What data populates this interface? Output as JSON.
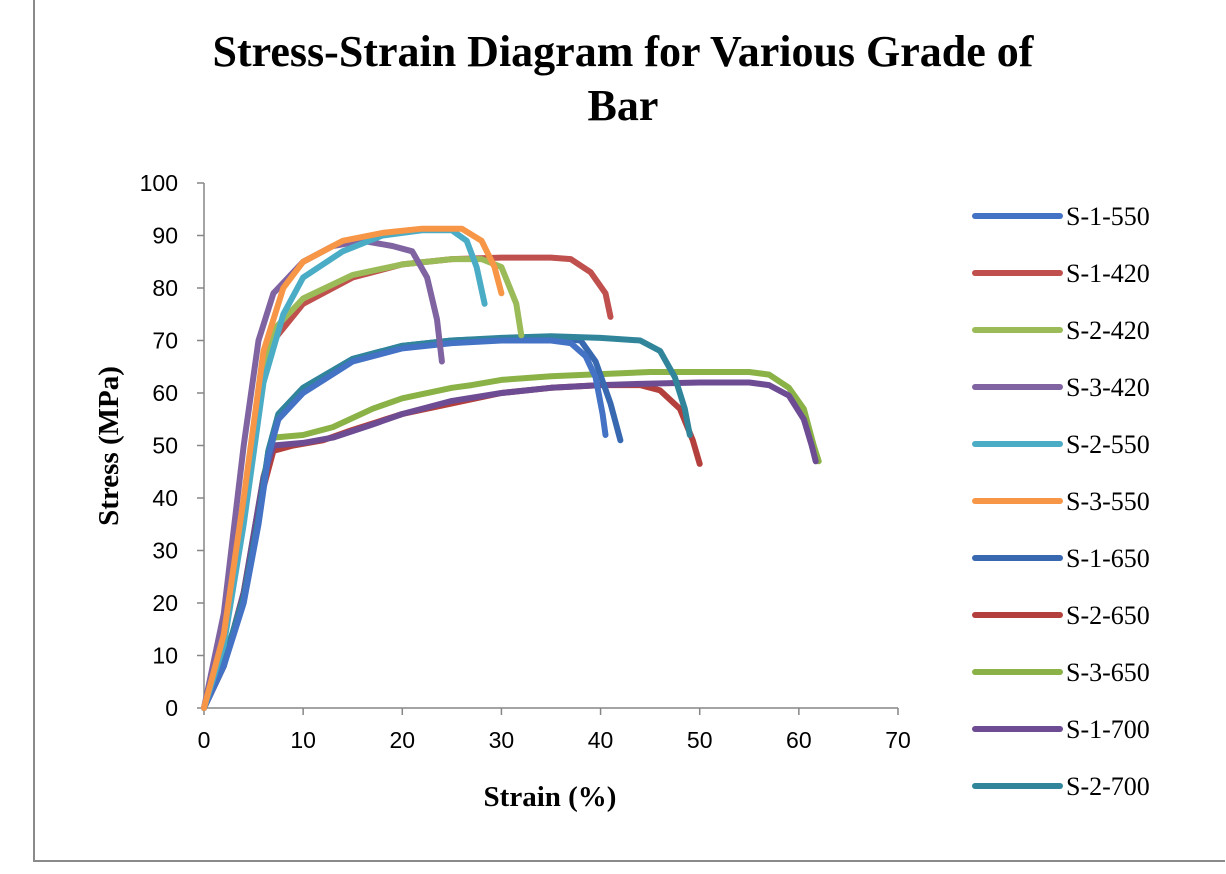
{
  "chart_data": {
    "type": "line",
    "title_lines": [
      "Stress-Strain Diagram for Various Grade of",
      "Bar"
    ],
    "xlabel": "Strain (%)",
    "ylabel": "Stress (MPa)",
    "xlim": [
      0,
      70
    ],
    "ylim": [
      0,
      100
    ],
    "x_ticks": [
      0,
      10,
      20,
      30,
      40,
      50,
      60,
      70
    ],
    "y_ticks": [
      0,
      10,
      20,
      30,
      40,
      50,
      60,
      70,
      80,
      90,
      100
    ],
    "grid": false,
    "legend_position": "right",
    "series": [
      {
        "name": "S-1-550",
        "color": "#4472c4",
        "points": [
          [
            0,
            0
          ],
          [
            2,
            8
          ],
          [
            4,
            20
          ],
          [
            5.5,
            35
          ],
          [
            6.5,
            48
          ],
          [
            7.5,
            55
          ],
          [
            10,
            60
          ],
          [
            15,
            66
          ],
          [
            20,
            68.5
          ],
          [
            25,
            69.5
          ],
          [
            30,
            70
          ],
          [
            35,
            70
          ],
          [
            37,
            69.5
          ],
          [
            38.5,
            67
          ],
          [
            39.5,
            63
          ],
          [
            40.2,
            56
          ],
          [
            40.5,
            52
          ]
        ]
      },
      {
        "name": "S-1-420",
        "color": "#c0504d",
        "points": [
          [
            0,
            0
          ],
          [
            2,
            15
          ],
          [
            4,
            38
          ],
          [
            5.5,
            60
          ],
          [
            7,
            70
          ],
          [
            10,
            77
          ],
          [
            15,
            82
          ],
          [
            20,
            84.5
          ],
          [
            25,
            85.5
          ],
          [
            30,
            85.8
          ],
          [
            35,
            85.8
          ],
          [
            37,
            85.5
          ],
          [
            39,
            83
          ],
          [
            40.5,
            79
          ],
          [
            41,
            74.5
          ]
        ]
      },
      {
        "name": "S-2-420",
        "color": "#9bbb59",
        "points": [
          [
            0,
            0
          ],
          [
            2,
            15
          ],
          [
            4,
            38
          ],
          [
            5.5,
            60
          ],
          [
            7,
            72
          ],
          [
            10,
            78
          ],
          [
            15,
            82.5
          ],
          [
            20,
            84.5
          ],
          [
            25,
            85.5
          ],
          [
            28,
            85.5
          ],
          [
            30,
            84
          ],
          [
            31.5,
            77
          ],
          [
            32,
            71
          ]
        ]
      },
      {
        "name": "S-3-420",
        "color": "#8064a2",
        "points": [
          [
            0,
            0
          ],
          [
            2,
            18
          ],
          [
            4,
            50
          ],
          [
            5.5,
            70
          ],
          [
            7,
            79
          ],
          [
            10,
            85
          ],
          [
            13,
            88
          ],
          [
            16,
            89
          ],
          [
            19,
            88
          ],
          [
            21,
            87
          ],
          [
            22.5,
            82
          ],
          [
            23.5,
            74
          ],
          [
            24,
            66
          ]
        ]
      },
      {
        "name": "S-2-550",
        "color": "#4bacc6",
        "points": [
          [
            0,
            0
          ],
          [
            2,
            12
          ],
          [
            4,
            35
          ],
          [
            6,
            62
          ],
          [
            8,
            75
          ],
          [
            10,
            82
          ],
          [
            14,
            87
          ],
          [
            18,
            90
          ],
          [
            22,
            91
          ],
          [
            25,
            91
          ],
          [
            26.5,
            89
          ],
          [
            27.5,
            84
          ],
          [
            28.3,
            77
          ]
        ]
      },
      {
        "name": "S-3-550",
        "color": "#f79646",
        "points": [
          [
            0,
            0
          ],
          [
            2,
            14
          ],
          [
            4,
            40
          ],
          [
            6,
            68
          ],
          [
            8,
            80
          ],
          [
            10,
            85
          ],
          [
            14,
            89
          ],
          [
            18,
            90.5
          ],
          [
            22,
            91.3
          ],
          [
            26,
            91.3
          ],
          [
            28,
            89
          ],
          [
            29.3,
            84
          ],
          [
            30,
            79
          ]
        ]
      },
      {
        "name": "S-1-650",
        "color": "#3869b0",
        "points": [
          [
            0,
            0
          ],
          [
            2,
            9
          ],
          [
            4,
            21
          ],
          [
            5.5,
            36
          ],
          [
            6.5,
            49
          ],
          [
            7.5,
            56
          ],
          [
            10,
            61
          ],
          [
            15,
            66.5
          ],
          [
            20,
            69
          ],
          [
            25,
            70
          ],
          [
            30,
            70.4
          ],
          [
            35,
            70.5
          ],
          [
            38,
            70
          ],
          [
            39.5,
            66
          ],
          [
            41,
            58
          ],
          [
            42,
            51
          ]
        ]
      },
      {
        "name": "S-2-650",
        "color": "#b3403c",
        "points": [
          [
            0,
            0
          ],
          [
            2,
            8
          ],
          [
            4,
            22
          ],
          [
            6,
            42
          ],
          [
            7,
            49
          ],
          [
            9,
            50
          ],
          [
            12,
            51
          ],
          [
            15,
            53
          ],
          [
            20,
            56
          ],
          [
            25,
            58
          ],
          [
            30,
            60
          ],
          [
            35,
            61
          ],
          [
            40,
            61.5
          ],
          [
            44,
            61.5
          ],
          [
            46,
            60.5
          ],
          [
            48,
            57
          ],
          [
            49.3,
            51
          ],
          [
            50,
            46.5
          ]
        ]
      },
      {
        "name": "S-3-650",
        "color": "#8ab247",
        "points": [
          [
            0,
            0
          ],
          [
            2,
            8
          ],
          [
            4,
            22
          ],
          [
            6,
            44
          ],
          [
            7,
            51.5
          ],
          [
            10,
            52
          ],
          [
            13,
            53.5
          ],
          [
            17,
            57
          ],
          [
            20,
            59
          ],
          [
            25,
            61
          ],
          [
            27,
            61.5
          ],
          [
            30,
            62.5
          ],
          [
            35,
            63.2
          ],
          [
            40,
            63.6
          ],
          [
            45,
            64
          ],
          [
            50,
            64
          ],
          [
            55,
            64
          ],
          [
            57,
            63.5
          ],
          [
            59,
            61
          ],
          [
            60.5,
            57
          ],
          [
            61.5,
            50
          ],
          [
            62,
            47
          ]
        ]
      },
      {
        "name": "S-1-700",
        "color": "#6d4c93",
        "points": [
          [
            0,
            0
          ],
          [
            2,
            8
          ],
          [
            4,
            22
          ],
          [
            6,
            44
          ],
          [
            7,
            50
          ],
          [
            10,
            50.5
          ],
          [
            13,
            51.5
          ],
          [
            17,
            54
          ],
          [
            20,
            56
          ],
          [
            25,
            58.5
          ],
          [
            30,
            60
          ],
          [
            35,
            61
          ],
          [
            40,
            61.5
          ],
          [
            45,
            61.8
          ],
          [
            50,
            62
          ],
          [
            55,
            62
          ],
          [
            57,
            61.5
          ],
          [
            59,
            59.5
          ],
          [
            60.5,
            55
          ],
          [
            61.3,
            50
          ],
          [
            61.7,
            47
          ]
        ]
      },
      {
        "name": "S-2-700",
        "color": "#31859b",
        "points": [
          [
            0,
            0
          ],
          [
            2,
            9
          ],
          [
            4,
            21
          ],
          [
            5.5,
            36
          ],
          [
            6.5,
            49
          ],
          [
            7.5,
            56
          ],
          [
            10,
            61
          ],
          [
            15,
            66.5
          ],
          [
            20,
            69
          ],
          [
            25,
            70
          ],
          [
            30,
            70.5
          ],
          [
            35,
            70.8
          ],
          [
            40,
            70.5
          ],
          [
            44,
            70
          ],
          [
            46,
            68
          ],
          [
            47.5,
            63
          ],
          [
            48.5,
            57
          ],
          [
            49,
            52
          ]
        ]
      }
    ]
  }
}
